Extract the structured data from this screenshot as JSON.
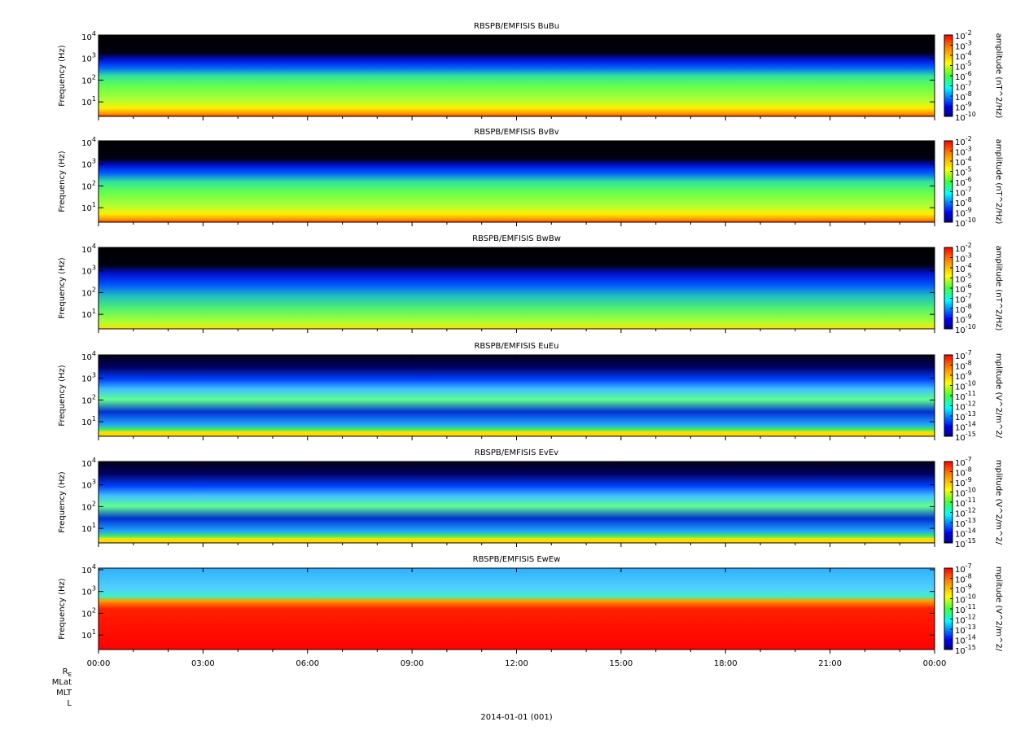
{
  "chart_data": [
    {
      "type": "spectrogram",
      "title": "RBSPB/EMFISIS  BuBu",
      "ylabel": "Frequency (Hz)",
      "ylim": [
        2.15,
        11800
      ],
      "log_y": true,
      "yticks": [
        {
          "value": 10,
          "base": "10",
          "exp": "1"
        },
        {
          "value": 100,
          "base": "10",
          "exp": "2"
        },
        {
          "value": 1000,
          "base": "10",
          "exp": "3"
        },
        {
          "value": 10000,
          "base": "10",
          "exp": "4"
        }
      ],
      "colorbar": {
        "label": "amplitude (nT^2/Hz)",
        "clim": [
          1e-10,
          0.01
        ],
        "ticks": [
          {
            "value": 0.01,
            "base": "10",
            "exp": "-2"
          },
          {
            "value": 0.001,
            "base": "10",
            "exp": "-3"
          },
          {
            "value": 0.0001,
            "base": "10",
            "exp": "-4"
          },
          {
            "value": 1e-05,
            "base": "10",
            "exp": "-5"
          },
          {
            "value": 1e-06,
            "base": "10",
            "exp": "-6"
          },
          {
            "value": 1e-07,
            "base": "10",
            "exp": "-7"
          },
          {
            "value": 1e-08,
            "base": "10",
            "exp": "-8"
          },
          {
            "value": 1e-09,
            "base": "10",
            "exp": "-9"
          },
          {
            "value": 1e-10,
            "base": "10",
            "exp": "-10"
          }
        ]
      }
    },
    {
      "type": "spectrogram",
      "title": "RBSPB/EMFISIS  BvBv",
      "ylabel": "Frequency (Hz)",
      "ylim": [
        2.15,
        11800
      ],
      "log_y": true,
      "yticks": [
        {
          "value": 10,
          "base": "10",
          "exp": "1"
        },
        {
          "value": 100,
          "base": "10",
          "exp": "2"
        },
        {
          "value": 1000,
          "base": "10",
          "exp": "3"
        },
        {
          "value": 10000,
          "base": "10",
          "exp": "4"
        }
      ],
      "colorbar": {
        "label": "amplitude (nT^2/Hz)",
        "clim": [
          1e-10,
          0.01
        ],
        "ticks": [
          {
            "value": 0.01,
            "base": "10",
            "exp": "-2"
          },
          {
            "value": 0.001,
            "base": "10",
            "exp": "-3"
          },
          {
            "value": 0.0001,
            "base": "10",
            "exp": "-4"
          },
          {
            "value": 1e-05,
            "base": "10",
            "exp": "-5"
          },
          {
            "value": 1e-06,
            "base": "10",
            "exp": "-6"
          },
          {
            "value": 1e-07,
            "base": "10",
            "exp": "-7"
          },
          {
            "value": 1e-08,
            "base": "10",
            "exp": "-8"
          },
          {
            "value": 1e-09,
            "base": "10",
            "exp": "-9"
          },
          {
            "value": 1e-10,
            "base": "10",
            "exp": "-10"
          }
        ]
      }
    },
    {
      "type": "spectrogram",
      "title": "RBSPB/EMFISIS  BwBw",
      "ylabel": "Frequency (Hz)",
      "ylim": [
        2.15,
        11800
      ],
      "log_y": true,
      "yticks": [
        {
          "value": 10,
          "base": "10",
          "exp": "1"
        },
        {
          "value": 100,
          "base": "10",
          "exp": "2"
        },
        {
          "value": 1000,
          "base": "10",
          "exp": "3"
        },
        {
          "value": 10000,
          "base": "10",
          "exp": "4"
        }
      ],
      "colorbar": {
        "label": "amplitude (nT^2/Hz)",
        "clim": [
          1e-10,
          0.01
        ],
        "ticks": [
          {
            "value": 0.01,
            "base": "10",
            "exp": "-2"
          },
          {
            "value": 0.001,
            "base": "10",
            "exp": "-3"
          },
          {
            "value": 0.0001,
            "base": "10",
            "exp": "-4"
          },
          {
            "value": 1e-05,
            "base": "10",
            "exp": "-5"
          },
          {
            "value": 1e-06,
            "base": "10",
            "exp": "-6"
          },
          {
            "value": 1e-07,
            "base": "10",
            "exp": "-7"
          },
          {
            "value": 1e-08,
            "base": "10",
            "exp": "-8"
          },
          {
            "value": 1e-09,
            "base": "10",
            "exp": "-9"
          },
          {
            "value": 1e-10,
            "base": "10",
            "exp": "-10"
          }
        ]
      }
    },
    {
      "type": "spectrogram",
      "title": "RBSPB/EMFISIS  EuEu",
      "ylabel": "Frequency (Hz)",
      "ylim": [
        2.15,
        11800
      ],
      "log_y": true,
      "yticks": [
        {
          "value": 10,
          "base": "10",
          "exp": "1"
        },
        {
          "value": 100,
          "base": "10",
          "exp": "2"
        },
        {
          "value": 1000,
          "base": "10",
          "exp": "3"
        },
        {
          "value": 10000,
          "base": "10",
          "exp": "4"
        }
      ],
      "colorbar": {
        "label": "mplitude (V^2/m^2/",
        "clim": [
          1e-15,
          1e-07
        ],
        "ticks": [
          {
            "value": 1e-07,
            "base": "10",
            "exp": "-7"
          },
          {
            "value": 1e-08,
            "base": "10",
            "exp": "-8"
          },
          {
            "value": 1e-09,
            "base": "10",
            "exp": "-9"
          },
          {
            "value": 1e-10,
            "base": "10",
            "exp": "-10"
          },
          {
            "value": 1e-11,
            "base": "10",
            "exp": "-11"
          },
          {
            "value": 1e-12,
            "base": "10",
            "exp": "-12"
          },
          {
            "value": 1e-13,
            "base": "10",
            "exp": "-13"
          },
          {
            "value": 1e-14,
            "base": "10",
            "exp": "-14"
          },
          {
            "value": 1e-15,
            "base": "10",
            "exp": "-15"
          }
        ]
      }
    },
    {
      "type": "spectrogram",
      "title": "RBSPB/EMFISIS  EvEv",
      "ylabel": "Frequency (Hz)",
      "ylim": [
        2.15,
        11800
      ],
      "log_y": true,
      "yticks": [
        {
          "value": 10,
          "base": "10",
          "exp": "1"
        },
        {
          "value": 100,
          "base": "10",
          "exp": "2"
        },
        {
          "value": 1000,
          "base": "10",
          "exp": "3"
        },
        {
          "value": 10000,
          "base": "10",
          "exp": "4"
        }
      ],
      "colorbar": {
        "label": "mplitude (V^2/m^2/",
        "clim": [
          1e-15,
          1e-07
        ],
        "ticks": [
          {
            "value": 1e-07,
            "base": "10",
            "exp": "-7"
          },
          {
            "value": 1e-08,
            "base": "10",
            "exp": "-8"
          },
          {
            "value": 1e-09,
            "base": "10",
            "exp": "-9"
          },
          {
            "value": 1e-10,
            "base": "10",
            "exp": "-10"
          },
          {
            "value": 1e-11,
            "base": "10",
            "exp": "-11"
          },
          {
            "value": 1e-12,
            "base": "10",
            "exp": "-12"
          },
          {
            "value": 1e-13,
            "base": "10",
            "exp": "-13"
          },
          {
            "value": 1e-14,
            "base": "10",
            "exp": "-14"
          },
          {
            "value": 1e-15,
            "base": "10",
            "exp": "-15"
          }
        ]
      }
    },
    {
      "type": "spectrogram",
      "title": "RBSPB/EMFISIS  EwEw",
      "ylabel": "Frequency (Hz)",
      "ylim": [
        2.15,
        11800
      ],
      "log_y": true,
      "yticks": [
        {
          "value": 10,
          "base": "10",
          "exp": "1"
        },
        {
          "value": 100,
          "base": "10",
          "exp": "2"
        },
        {
          "value": 1000,
          "base": "10",
          "exp": "3"
        },
        {
          "value": 10000,
          "base": "10",
          "exp": "4"
        }
      ],
      "colorbar": {
        "label": "mplitude (V^2/m^2/",
        "clim": [
          1e-15,
          1e-07
        ],
        "ticks": [
          {
            "value": 1e-07,
            "base": "10",
            "exp": "-7"
          },
          {
            "value": 1e-08,
            "base": "10",
            "exp": "-8"
          },
          {
            "value": 1e-09,
            "base": "10",
            "exp": "-9"
          },
          {
            "value": 1e-10,
            "base": "10",
            "exp": "-10"
          },
          {
            "value": 1e-11,
            "base": "10",
            "exp": "-11"
          },
          {
            "value": 1e-12,
            "base": "10",
            "exp": "-12"
          },
          {
            "value": 1e-13,
            "base": "10",
            "exp": "-13"
          },
          {
            "value": 1e-14,
            "base": "10",
            "exp": "-14"
          },
          {
            "value": 1e-15,
            "base": "10",
            "exp": "-15"
          }
        ]
      }
    }
  ],
  "x_axis": {
    "xlim": [
      0,
      24
    ],
    "xticks": [
      {
        "value": 0,
        "label": "00:00"
      },
      {
        "value": 3,
        "label": "03:00"
      },
      {
        "value": 6,
        "label": "06:00"
      },
      {
        "value": 9,
        "label": "09:00"
      },
      {
        "value": 12,
        "label": "12:00"
      },
      {
        "value": 15,
        "label": "15:00"
      },
      {
        "value": 18,
        "label": "18:00"
      },
      {
        "value": 21,
        "label": "21:00"
      },
      {
        "value": 24,
        "label": "00:00"
      }
    ],
    "xminorticks": [
      1,
      2,
      4,
      5,
      7,
      8,
      10,
      11,
      13,
      14,
      16,
      17,
      19,
      20,
      22,
      23
    ]
  },
  "ephemeris_labels": [
    {
      "text": "R",
      "sub": "E"
    },
    {
      "text": "MLat"
    },
    {
      "text": "MLT"
    },
    {
      "text": "L"
    }
  ],
  "date_label": "2014-01-01 (001)"
}
